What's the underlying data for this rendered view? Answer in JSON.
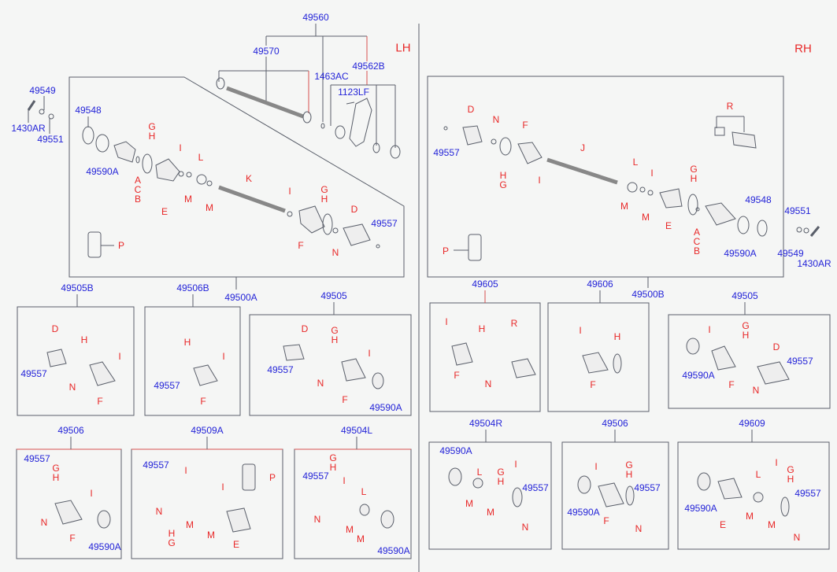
{
  "side_labels": {
    "lh": "LH",
    "rh": "RH"
  },
  "colors": {
    "part_number": "#2424d8",
    "letter_code": "#e82828",
    "line": "#5a5f6a"
  },
  "panels": [
    {
      "id": "lh-shaft-assembly",
      "title": "49560",
      "labels": [
        "49570",
        "1463AC",
        "49562B",
        "1123LF"
      ]
    },
    {
      "id": "lh-hardware",
      "title": "",
      "labels": [
        "49549",
        "1430AR",
        "49551"
      ]
    },
    {
      "id": "lh-driveshaft",
      "title": "49500A",
      "labels": [
        "49548",
        "49590A",
        "G",
        "H",
        "A",
        "C",
        "B",
        "E",
        "I",
        "M",
        "L",
        "M",
        "K",
        "I",
        "G",
        "H",
        "D",
        "49557",
        "F",
        "N",
        "P"
      ]
    },
    {
      "id": "rh-driveshaft",
      "title": "49500B",
      "labels": [
        "D",
        "N",
        "F",
        "J",
        "R",
        "49557",
        "H",
        "G",
        "I",
        "L",
        "I",
        "G",
        "H",
        "M",
        "M",
        "E",
        "A",
        "C",
        "B",
        "49548",
        "49590A",
        "P"
      ]
    },
    {
      "id": "rh-hardware",
      "title": "",
      "labels": [
        "49551",
        "49549",
        "1430AR"
      ]
    },
    {
      "id": "kit-49505B",
      "title": "49505B",
      "labels": [
        "D",
        "H",
        "I",
        "49557",
        "N",
        "F"
      ]
    },
    {
      "id": "kit-49506B",
      "title": "49506B",
      "labels": [
        "H",
        "I",
        "49557",
        "F"
      ]
    },
    {
      "id": "kit-49505-lh",
      "title": "49505",
      "labels": [
        "D",
        "G",
        "H",
        "I",
        "49557",
        "N",
        "F",
        "49590A"
      ]
    },
    {
      "id": "kit-49605",
      "title": "49605",
      "labels": [
        "I",
        "H",
        "R",
        "F",
        "N"
      ]
    },
    {
      "id": "kit-49606",
      "title": "49606",
      "labels": [
        "I",
        "H",
        "F"
      ]
    },
    {
      "id": "kit-49505-rh",
      "title": "49505",
      "labels": [
        "I",
        "G",
        "H",
        "D",
        "49557",
        "49590A",
        "F",
        "N"
      ]
    },
    {
      "id": "kit-49506",
      "title": "49506",
      "labels": [
        "49557",
        "G",
        "H",
        "I",
        "N",
        "F",
        "49590A"
      ]
    },
    {
      "id": "kit-49509A",
      "title": "49509A",
      "labels": [
        "49557",
        "I",
        "P",
        "I",
        "N",
        "M",
        "H",
        "G",
        "M",
        "E"
      ]
    },
    {
      "id": "kit-49504L",
      "title": "49504L",
      "labels": [
        "G",
        "H",
        "49557",
        "I",
        "L",
        "N",
        "M",
        "M",
        "49590A"
      ]
    },
    {
      "id": "kit-49504R",
      "title": "49504R",
      "labels": [
        "49590A",
        "L",
        "G",
        "H",
        "I",
        "49557",
        "M",
        "M",
        "N"
      ]
    },
    {
      "id": "kit-49506-rh",
      "title": "49506",
      "labels": [
        "I",
        "G",
        "H",
        "49557",
        "49590A",
        "F",
        "N"
      ]
    },
    {
      "id": "kit-49609",
      "title": "49609",
      "labels": [
        "I",
        "L",
        "G",
        "H",
        "49557",
        "49590A",
        "E",
        "M",
        "M",
        "N"
      ]
    }
  ]
}
